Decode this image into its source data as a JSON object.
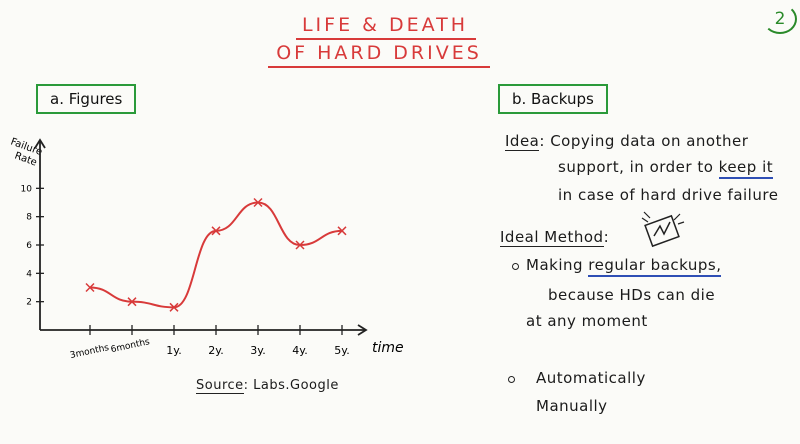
{
  "header": {
    "title_line1": "LIFE & DEATH",
    "title_line2": "OF HARD DRIVES",
    "page_number": "2"
  },
  "figures": {
    "heading": "a. Figures",
    "source_label": "Source",
    "source_value": ": Labs.Google"
  },
  "chart_data": {
    "type": "line",
    "ylabel_line1": "Failure",
    "ylabel_line2": "Rate",
    "xlabel": "time",
    "categories": [
      "3months",
      "6months",
      "1y.",
      "2y.",
      "3y.",
      "4y.",
      "5y."
    ],
    "yticks": [
      2,
      4,
      6,
      8,
      10
    ],
    "ylim": [
      0,
      12
    ],
    "series": [
      {
        "x": [
          0,
          1,
          2,
          3,
          4,
          5,
          6
        ],
        "values": [
          3,
          2,
          1.6,
          7,
          9,
          6,
          7
        ]
      }
    ],
    "line_color": "#d83a3a",
    "axis_color": "#222222"
  },
  "backups": {
    "heading": "b. Backups",
    "idea_label": "Idea",
    "idea_line1": ": Copying data on another",
    "idea_line2_a": "support, in order to ",
    "idea_line2_b": "keep it",
    "idea_line3": "in case of hard drive failure",
    "method_label": "Ideal Method",
    "method_colon": ":",
    "bullet1_a": "Making ",
    "bullet1_b": "regular backups,",
    "bullet1_line2": "because HDs can die",
    "bullet1_line3": "at any moment",
    "bullet2_line1": "Automatically",
    "bullet2_line2": "Manually"
  },
  "colors": {
    "title": "#d83a3a",
    "box_border": "#2a9a3a",
    "underline_accent": "#2f4fb5"
  },
  "icons": [
    "hard-drive-doodle-icon"
  ]
}
